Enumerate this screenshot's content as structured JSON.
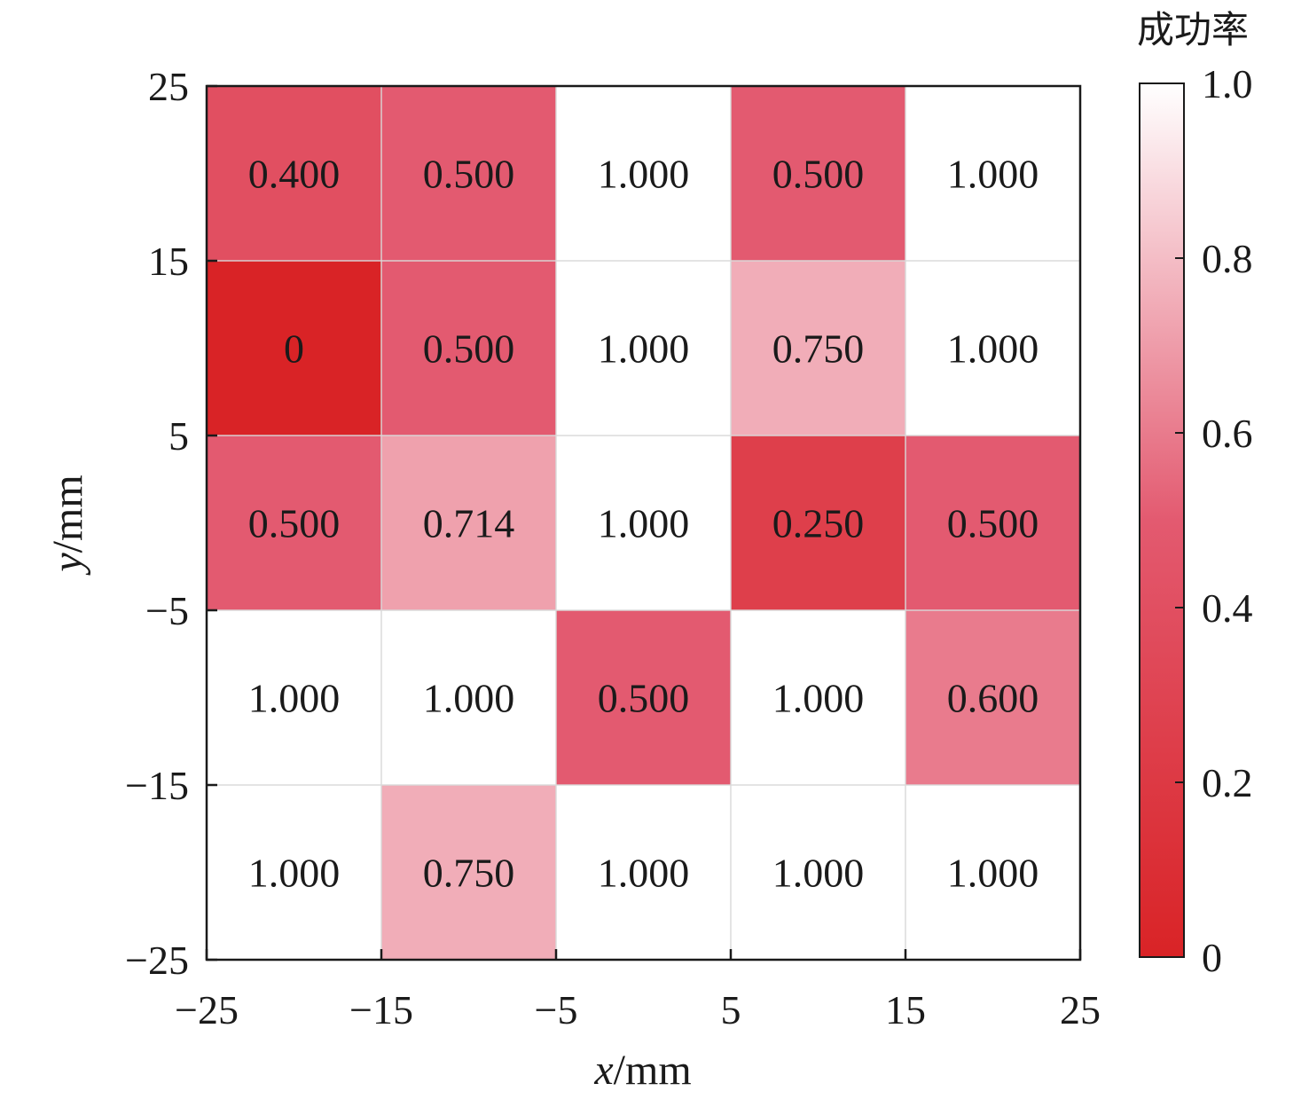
{
  "chart_data": {
    "type": "heatmap",
    "xlabel_var": "x",
    "xlabel_unit": "/mm",
    "ylabel_var": "y",
    "ylabel_unit": "/mm",
    "x_ticks": [
      "−25",
      "−15",
      "−5",
      "5",
      "15",
      "25"
    ],
    "y_ticks": [
      "25",
      "15",
      "5",
      "−5",
      "−15",
      "−25"
    ],
    "xlim": [
      -25,
      25
    ],
    "ylim": [
      -25,
      25
    ],
    "cell_size": 10,
    "rows_top_to_bottom": [
      [
        0.4,
        0.5,
        1.0,
        0.5,
        1.0
      ],
      [
        0.0,
        0.5,
        1.0,
        0.75,
        1.0
      ],
      [
        0.5,
        0.714,
        1.0,
        0.25,
        0.5
      ],
      [
        1.0,
        1.0,
        0.5,
        1.0,
        0.6
      ],
      [
        1.0,
        0.75,
        1.0,
        1.0,
        1.0
      ]
    ],
    "cell_labels_top_to_bottom": [
      [
        "0.400",
        "0.500",
        "1.000",
        "0.500",
        "1.000"
      ],
      [
        "0",
        "0.500",
        "1.000",
        "0.750",
        "1.000"
      ],
      [
        "0.500",
        "0.714",
        "1.000",
        "0.250",
        "0.500"
      ],
      [
        "1.000",
        "1.000",
        "0.500",
        "1.000",
        "0.600"
      ],
      [
        "1.000",
        "0.750",
        "1.000",
        "1.000",
        "1.000"
      ]
    ],
    "colorbar": {
      "title": "成功率",
      "range": [
        0,
        1
      ],
      "ticks": [
        "0",
        "0.2",
        "0.4",
        "0.6",
        "0.8",
        "1.0"
      ],
      "tick_values": [
        0,
        0.2,
        0.4,
        0.6,
        0.8,
        1.0
      ],
      "low_color": "#d92326",
      "high_color": "#ffffff"
    },
    "grid": true
  }
}
